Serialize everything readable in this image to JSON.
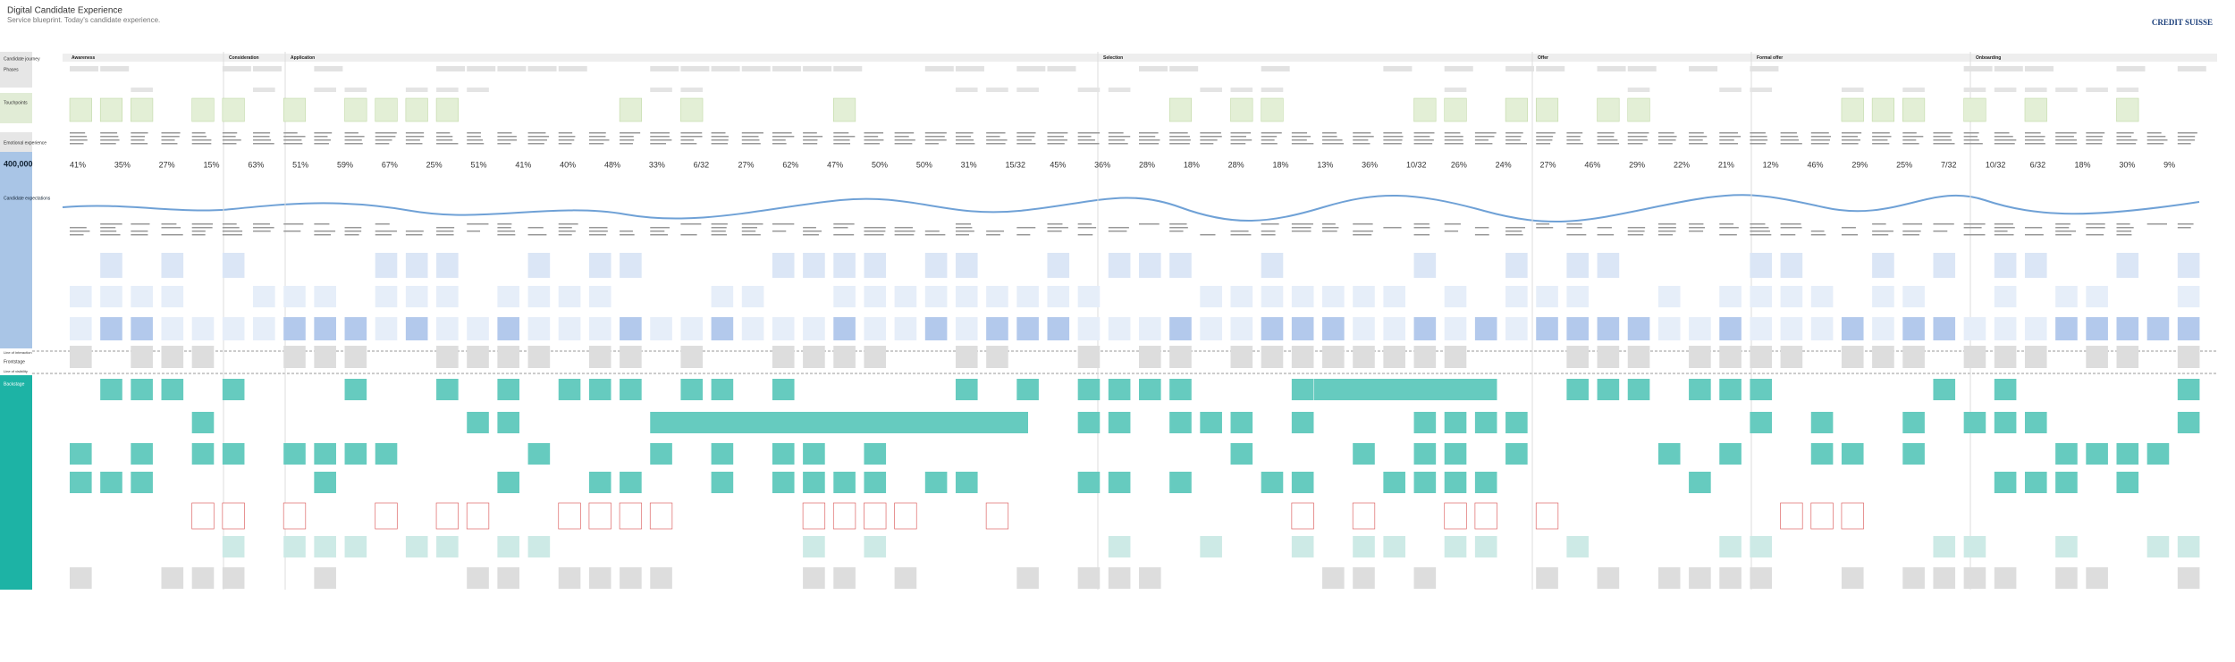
{
  "header": {
    "title": "Digital Candidate Experience",
    "subtitle": "Service blueprint. Today's candidate experience.",
    "logo": "CREDIT SUISSE"
  },
  "sidebar": {
    "journey": "Candidate journey",
    "phases_label": "Phases",
    "touchpoints": "Touchpoints",
    "emotional": "Emotional experience",
    "reach": "400,000",
    "expectations": "Candidate expectations",
    "line_interaction": "Line of interaction",
    "frontstage": "Frontstage",
    "line_visibility": "Line of visibility",
    "backstage": "Backstage"
  },
  "phases": [
    "Awareness",
    "Consideration",
    "Application",
    "Selection",
    "Offer",
    "Formal offer",
    "Onboarding"
  ],
  "metrics": [
    "41%",
    "35%",
    "27%",
    "15%",
    "63%",
    "51%",
    "59%",
    "67%",
    "25%",
    "51%",
    "41%",
    "40%",
    "48%",
    "33%",
    "6/32",
    "27%",
    "62%",
    "47%",
    "50%",
    "50%",
    "31%",
    "15/32",
    "45%",
    "36%",
    "28%",
    "18%",
    "28%",
    "18%",
    "13%",
    "36%",
    "10/32",
    "26%",
    "24%",
    "27%",
    "46%",
    "29%",
    "22%",
    "21%",
    "12%",
    "46%",
    "29%",
    "25%",
    "7/32",
    "10/32",
    "6/32",
    "18%",
    "30%",
    "9%"
  ]
}
